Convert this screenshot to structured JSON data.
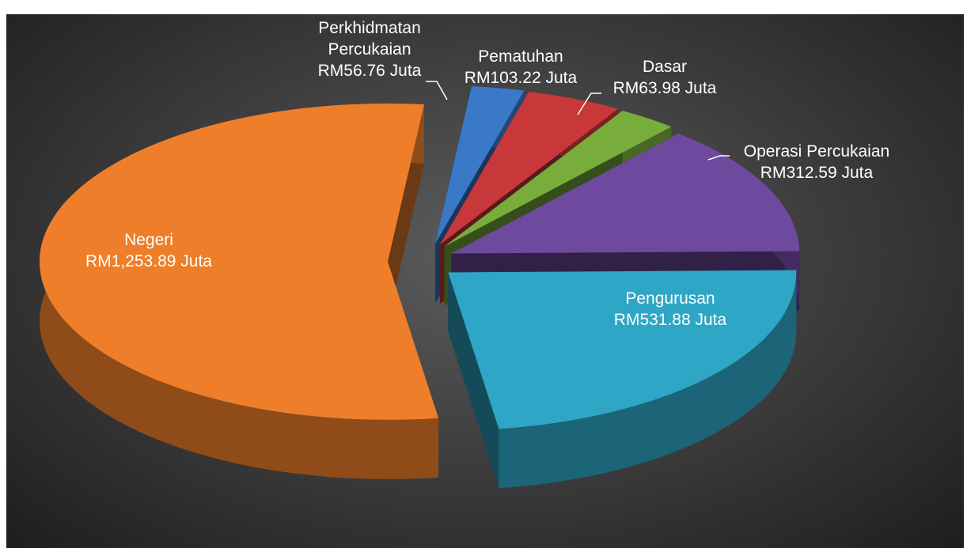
{
  "chart_data": {
    "type": "pie3d",
    "categories": [
      "Perkhidmatan Percukaian",
      "Pematuhan",
      "Dasar",
      "Operasi Percukaian",
      "Pengurusan",
      "Negeri"
    ],
    "values": [
      56.76,
      103.22,
      63.98,
      312.59,
      531.88,
      1253.89
    ],
    "value_labels": [
      "RM56.76 Juta",
      "RM103.22 Juta",
      "RM63.98 Juta",
      "RM312.59 Juta",
      "RM531.88 Juta",
      "RM1,253.89 Juta"
    ],
    "colors": [
      "#3a78c8",
      "#c8383a",
      "#78ad3c",
      "#6e4a9e",
      "#2ea6c6",
      "#ee7e2a"
    ]
  }
}
